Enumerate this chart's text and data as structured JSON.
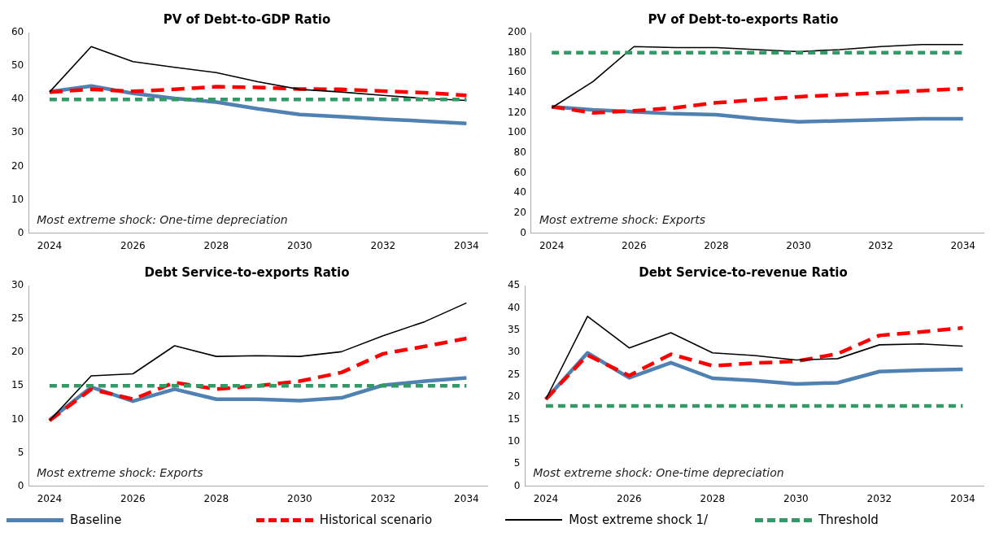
{
  "chart_data": [
    {
      "type": "line",
      "title": "PV of Debt-to-GDP Ratio",
      "categories": [
        "2024",
        null,
        "2026",
        null,
        "2028",
        null,
        "2030",
        null,
        "2032",
        null,
        "2034"
      ],
      "ylim": [
        0,
        60
      ],
      "yticks": [
        0,
        10,
        20,
        30,
        40,
        50,
        60
      ],
      "grid": false,
      "marker": "none",
      "legend": "bottom",
      "annotations": [
        "Most extreme shock: One-time depreciation"
      ],
      "series": [
        {
          "name": "Baseline",
          "color": "#4f81b3",
          "line_style": "solid",
          "values": [
            42.3,
            44,
            41.8,
            40.3,
            39.2,
            37.2,
            35.5,
            34.8,
            34.1,
            33.5,
            32.8
          ]
        },
        {
          "name": "Historical scenario",
          "color": "#ff0000",
          "line_style": "dashed",
          "values": [
            42.2,
            43,
            42.4,
            43,
            43.8,
            43.6,
            43.1,
            43,
            42.5,
            42,
            41.2
          ]
        },
        {
          "name": "Most extreme shock 1/",
          "color": "#000000",
          "line_style": "solid",
          "values": [
            42.2,
            55.8,
            51.3,
            49.6,
            48,
            45.3,
            43,
            42.2,
            41.2,
            40.3,
            39.7
          ]
        },
        {
          "name": "Threshold",
          "color": "#339966",
          "line_style": "dashed",
          "values": [
            40,
            40,
            40,
            40,
            40,
            40,
            40,
            40,
            40,
            40,
            40
          ]
        }
      ]
    },
    {
      "type": "line",
      "title": "PV of Debt-to-exports Ratio",
      "categories": [
        "2024",
        null,
        "2026",
        null,
        "2028",
        null,
        "2030",
        null,
        "2032",
        null,
        "2034"
      ],
      "ylim": [
        0,
        200
      ],
      "yticks": [
        0,
        20,
        40,
        60,
        80,
        100,
        120,
        140,
        160,
        180,
        200
      ],
      "grid": false,
      "marker": "none",
      "annotations": [
        "Most extreme shock: Exports"
      ],
      "series": [
        {
          "color": "#4f81b3",
          "line_style": "solid",
          "values": [
            126,
            123,
            121,
            119,
            118,
            114,
            111,
            112,
            113,
            114,
            114
          ]
        },
        {
          "color": "#ff0000",
          "line_style": "dashed",
          "values": [
            126,
            120,
            122,
            125,
            130,
            133,
            136,
            138,
            140,
            142,
            144
          ]
        },
        {
          "color": "#000000",
          "line_style": "solid",
          "values": [
            125,
            151,
            186,
            185,
            185,
            183,
            181,
            183,
            186,
            188,
            188
          ]
        },
        {
          "color": "#339966",
          "line_style": "dashed",
          "values": [
            180,
            180,
            180,
            180,
            180,
            180,
            180,
            180,
            180,
            180,
            180
          ]
        }
      ]
    },
    {
      "type": "line",
      "title": "Debt Service-to-exports Ratio",
      "categories": [
        "2024",
        null,
        "2026",
        null,
        "2028",
        null,
        "2030",
        null,
        "2032",
        null,
        "2034"
      ],
      "ylim": [
        0,
        30
      ],
      "yticks": [
        0,
        5,
        10,
        15,
        20,
        25,
        30
      ],
      "grid": false,
      "marker": "none",
      "annotations": [
        "Most extreme shock: Exports"
      ],
      "series": [
        {
          "color": "#4f81b3",
          "line_style": "solid",
          "values": [
            9.9,
            14.8,
            12.7,
            14.5,
            13,
            13,
            12.8,
            13.2,
            15.1,
            15.7,
            16.2
          ]
        },
        {
          "color": "#ff0000",
          "line_style": "dashed",
          "values": [
            9.8,
            14.5,
            13,
            15.5,
            14.5,
            15,
            15.7,
            17,
            19.8,
            20.9,
            22.1
          ]
        },
        {
          "color": "#000000",
          "line_style": "solid",
          "values": [
            9.8,
            16.5,
            16.8,
            21,
            19.4,
            19.5,
            19.4,
            20.1,
            22.5,
            24.6,
            27.4
          ]
        },
        {
          "color": "#339966",
          "line_style": "dashed",
          "values": [
            15,
            15,
            15,
            15,
            15,
            15,
            15,
            15,
            15,
            15,
            15
          ]
        }
      ]
    },
    {
      "type": "line",
      "title": "Debt Service-to-revenue Ratio",
      "categories": [
        "2024",
        null,
        "2026",
        null,
        "2028",
        null,
        "2030",
        null,
        "2032",
        null,
        "2034"
      ],
      "ylim": [
        0,
        45
      ],
      "yticks": [
        0,
        5,
        10,
        15,
        20,
        25,
        30,
        35,
        40,
        45
      ],
      "grid": false,
      "marker": "none",
      "annotations": [
        "Most extreme shock: One-time depreciation"
      ],
      "series": [
        {
          "color": "#4f81b3",
          "line_style": "solid",
          "values": [
            19.5,
            29.9,
            24.3,
            27.7,
            24.2,
            23.7,
            22.9,
            23.2,
            25.7,
            26,
            26.2
          ]
        },
        {
          "color": "#ff0000",
          "line_style": "dashed",
          "values": [
            19.5,
            29.4,
            24.8,
            29.6,
            27,
            27.6,
            28,
            29.7,
            33.8,
            34.6,
            35.5
          ]
        },
        {
          "color": "#000000",
          "line_style": "solid",
          "values": [
            19.5,
            38.1,
            31,
            34.4,
            29.9,
            29.3,
            28.3,
            28.6,
            31.7,
            31.9,
            31.4
          ]
        },
        {
          "color": "#339966",
          "line_style": "dashed",
          "values": [
            18,
            18,
            18,
            18,
            18,
            18,
            18,
            18,
            18,
            18,
            18
          ]
        }
      ]
    }
  ]
}
